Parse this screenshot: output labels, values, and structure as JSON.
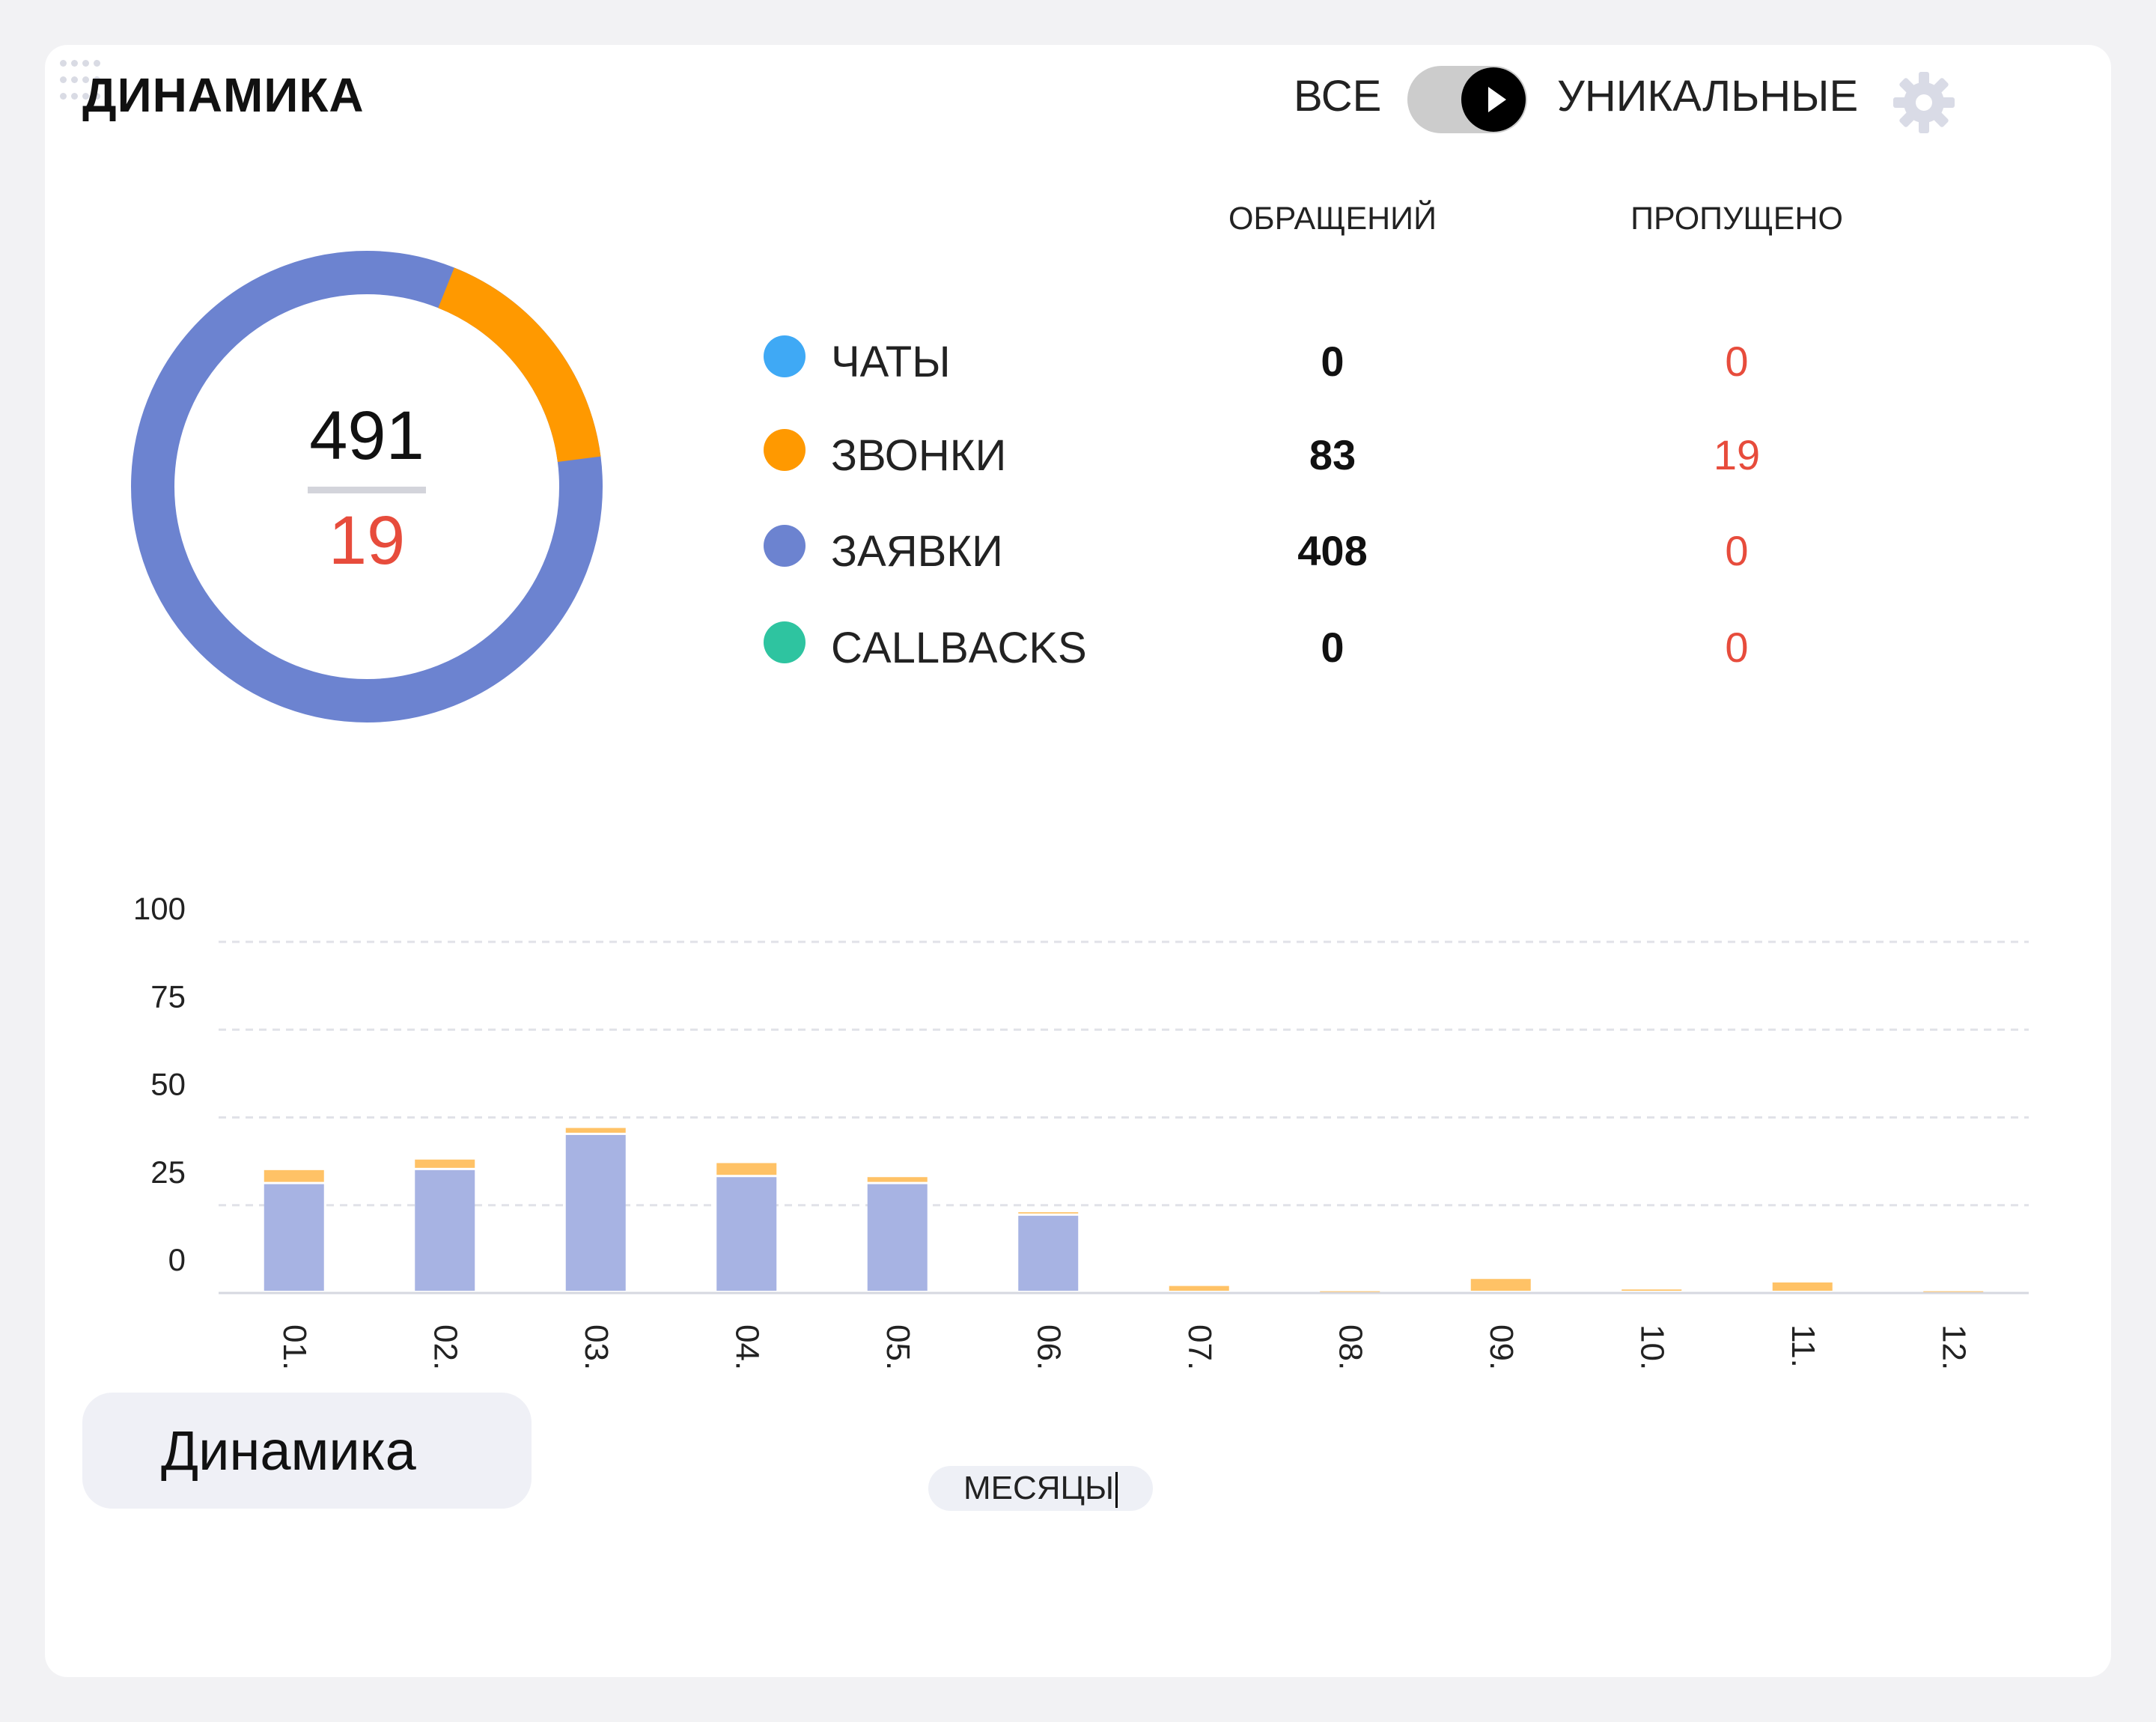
{
  "header": {
    "title": "ДИНАМИКА",
    "mode_all": "ВСЕ",
    "mode_unique": "УНИКАЛЬНЫЕ"
  },
  "table": {
    "col_calls": "ОБРАЩЕНИЙ",
    "col_missed": "ПРОПУЩЕНО",
    "rows": [
      {
        "label": "ЧАТЫ",
        "color": "#3fa9f5",
        "count": "0",
        "missed": "0"
      },
      {
        "label": "ЗВОНКИ",
        "color": "#ff9900",
        "count": "83",
        "missed": "19"
      },
      {
        "label": "ЗАЯВКИ",
        "color": "#6c83d0",
        "count": "408",
        "missed": "0"
      },
      {
        "label": "CALLBACKS",
        "color": "#2ec4a0",
        "count": "0",
        "missed": "0"
      }
    ]
  },
  "donut": {
    "total": "491",
    "missed": "19"
  },
  "chart_data": {
    "type": "bar",
    "stacked": true,
    "categories": [
      "01.",
      "02.",
      "03.",
      "04.",
      "05.",
      "06.",
      "07.",
      "08.",
      "09.",
      "10.",
      "11.",
      "12."
    ],
    "series": [
      {
        "name": "ЗАЯВКИ",
        "color": "#a7b3e3",
        "values": [
          31,
          35,
          45,
          33,
          31,
          22,
          0,
          0,
          0,
          0,
          0,
          0
        ]
      },
      {
        "name": "ЗВОНКИ",
        "color": "#ffc266",
        "values": [
          4,
          3,
          2,
          4,
          2,
          1,
          2,
          0.5,
          4,
          1,
          3,
          0.5
        ]
      }
    ],
    "y_ticks": [
      "0",
      "25",
      "50",
      "75",
      "100"
    ],
    "ylim": [
      0,
      100
    ],
    "grid": true,
    "xlabel": "МЕСЯЦЫ"
  },
  "footer": {
    "tab_label": "Динамика"
  }
}
